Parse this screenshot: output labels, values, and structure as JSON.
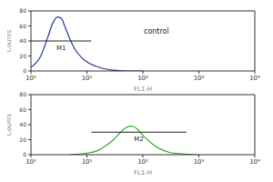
{
  "chart_data": [
    {
      "type": "line",
      "x_label": "FL1-H",
      "y_label": "Counts",
      "annotation": "control",
      "log": "x",
      "xlim": [
        1,
        10000
      ],
      "xticks": [
        {
          "value": 1,
          "label": "10⁰"
        },
        {
          "value": 10,
          "label": "10¹"
        },
        {
          "value": 100,
          "label": "10²"
        },
        {
          "value": 1000,
          "label": "10³"
        },
        {
          "value": 10000,
          "label": "10⁴"
        }
      ],
      "ylim": [
        0,
        80
      ],
      "yticks": [
        0,
        20,
        40,
        60,
        80
      ],
      "x": [
        1,
        1.5,
        2,
        2.5,
        3,
        3.5,
        4,
        5,
        6,
        8,
        10,
        15,
        20,
        30,
        50,
        100
      ],
      "series": [
        {
          "color": "#22389a",
          "values": [
            5,
            20,
            45,
            65,
            72,
            70,
            60,
            42,
            30,
            18,
            12,
            6,
            3,
            1,
            0,
            0
          ]
        }
      ],
      "markers": [
        {
          "label": "M1",
          "x": [
            1,
            12
          ],
          "y": 40
        }
      ]
    },
    {
      "type": "line",
      "x_label": "FL1-H",
      "y_label": "Counts",
      "log": "x",
      "xlim": [
        1,
        10000
      ],
      "xticks": [
        {
          "value": 1,
          "label": "10⁰"
        },
        {
          "value": 10,
          "label": "10¹"
        },
        {
          "value": 100,
          "label": "10²"
        },
        {
          "value": 1000,
          "label": "10³"
        },
        {
          "value": 10000,
          "label": "10⁴"
        }
      ],
      "ylim": [
        0,
        80
      ],
      "yticks": [
        0,
        20,
        40,
        60,
        80
      ],
      "x": [
        5,
        10,
        15,
        20,
        30,
        40,
        50,
        60,
        70,
        80,
        100,
        150,
        200,
        300,
        500,
        1000
      ],
      "series": [
        {
          "color": "#33aa33",
          "values": [
            0,
            2,
            5,
            10,
            20,
            30,
            36,
            38,
            37,
            34,
            26,
            14,
            8,
            3,
            1,
            0
          ]
        }
      ],
      "markers": [
        {
          "label": "M2",
          "x": [
            12,
            600
          ],
          "y": 30
        }
      ]
    }
  ]
}
